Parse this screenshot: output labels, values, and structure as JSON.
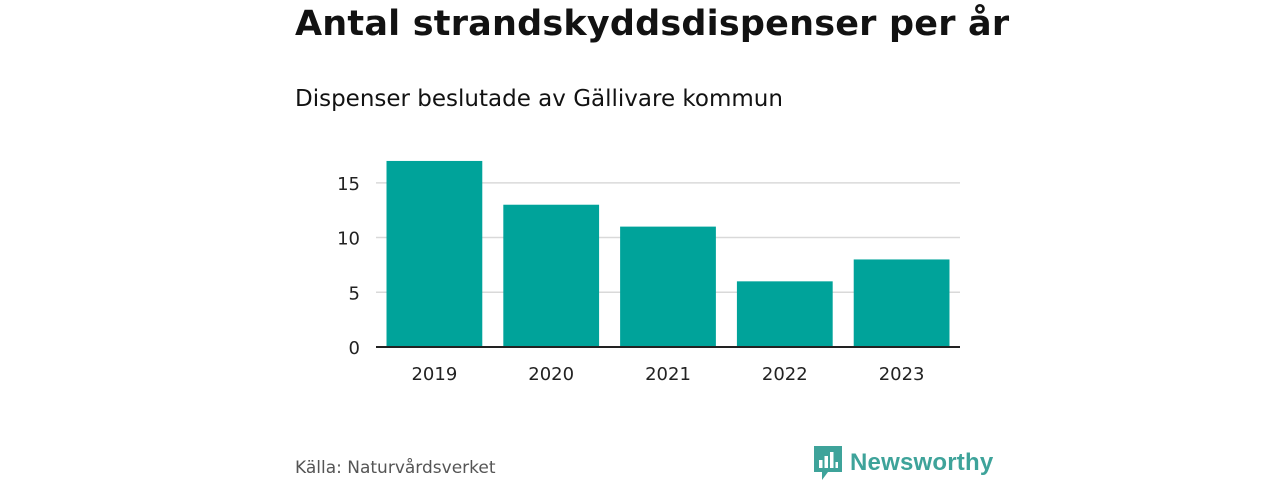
{
  "title": "Antal strandskyddsdispenser per år",
  "subtitle": "Dispenser beslutade av Gällivare kommun",
  "source": "Källa: Naturvårdsverket",
  "brand": "Newsworthy",
  "colors": {
    "bar": "#00a39a",
    "grid": "#d9d9d9",
    "axis": "#222222",
    "brand": "#3ea39a"
  },
  "chart_data": {
    "type": "bar",
    "title": "Antal strandskyddsdispenser per år",
    "subtitle": "Dispenser beslutade av Gällivare kommun",
    "categories": [
      "2019",
      "2020",
      "2021",
      "2022",
      "2023"
    ],
    "values": [
      17,
      13,
      11,
      6,
      8
    ],
    "xlabel": "",
    "ylabel": "",
    "ylim": [
      0,
      18
    ],
    "yticks": [
      0,
      5,
      10,
      15
    ],
    "grid": true,
    "legend": "none"
  }
}
